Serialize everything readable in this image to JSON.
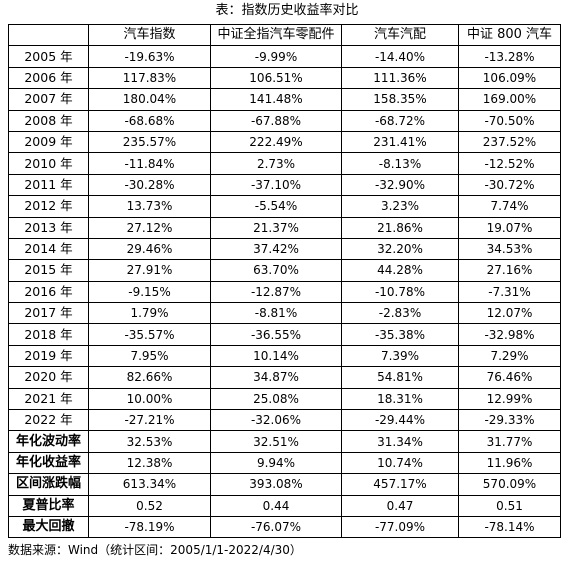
{
  "title": "表：指数历史收益率对比",
  "table": {
    "headers": [
      "",
      "汽车指数",
      "中证全指汽车零配件",
      "汽车汽配",
      "中证 800 汽车"
    ],
    "rows": [
      {
        "label": "2005 年",
        "values": [
          "-19.63%",
          "-9.99%",
          "-14.40%",
          "-13.28%"
        ]
      },
      {
        "label": "2006 年",
        "values": [
          "117.83%",
          "106.51%",
          "111.36%",
          "106.09%"
        ]
      },
      {
        "label": "2007 年",
        "values": [
          "180.04%",
          "141.48%",
          "158.35%",
          "169.00%"
        ]
      },
      {
        "label": "2008 年",
        "values": [
          "-68.68%",
          "-67.88%",
          "-68.72%",
          "-70.50%"
        ]
      },
      {
        "label": "2009 年",
        "values": [
          "235.57%",
          "222.49%",
          "231.41%",
          "237.52%"
        ]
      },
      {
        "label": "2010 年",
        "values": [
          "-11.84%",
          "2.73%",
          "-8.13%",
          "-12.52%"
        ]
      },
      {
        "label": "2011 年",
        "values": [
          "-30.28%",
          "-37.10%",
          "-32.90%",
          "-30.72%"
        ]
      },
      {
        "label": "2012 年",
        "values": [
          "13.73%",
          "-5.54%",
          "3.23%",
          "7.74%"
        ]
      },
      {
        "label": "2013 年",
        "values": [
          "27.12%",
          "21.37%",
          "21.86%",
          "19.07%"
        ]
      },
      {
        "label": "2014 年",
        "values": [
          "29.46%",
          "37.42%",
          "32.20%",
          "34.53%"
        ]
      },
      {
        "label": "2015 年",
        "values": [
          "27.91%",
          "63.70%",
          "44.28%",
          "27.16%"
        ]
      },
      {
        "label": "2016 年",
        "values": [
          "-9.15%",
          "-12.87%",
          "-10.78%",
          "-7.31%"
        ]
      },
      {
        "label": "2017 年",
        "values": [
          "1.79%",
          "-8.81%",
          "-2.83%",
          "12.07%"
        ]
      },
      {
        "label": "2018 年",
        "values": [
          "-35.57%",
          "-36.55%",
          "-35.38%",
          "-32.98%"
        ]
      },
      {
        "label": "2019 年",
        "values": [
          "7.95%",
          "10.14%",
          "7.39%",
          "7.29%"
        ]
      },
      {
        "label": "2020 年",
        "values": [
          "82.66%",
          "34.87%",
          "54.81%",
          "76.46%"
        ]
      },
      {
        "label": "2021 年",
        "values": [
          "10.00%",
          "25.08%",
          "18.31%",
          "12.99%"
        ]
      },
      {
        "label": "2022 年",
        "values": [
          "-27.21%",
          "-32.06%",
          "-29.44%",
          "-29.33%"
        ]
      },
      {
        "label": "年化波动率",
        "values": [
          "32.53%",
          "32.51%",
          "31.34%",
          "31.77%"
        ],
        "summary": true
      },
      {
        "label": "年化收益率",
        "values": [
          "12.38%",
          "9.94%",
          "10.74%",
          "11.96%"
        ],
        "summary": true
      },
      {
        "label": "区间涨跌幅",
        "values": [
          "613.34%",
          "393.08%",
          "457.17%",
          "570.09%"
        ],
        "summary": true
      },
      {
        "label": "夏普比率",
        "values": [
          "0.52",
          "0.44",
          "0.47",
          "0.51"
        ],
        "summary": true
      },
      {
        "label": "最大回撤",
        "values": [
          "-78.19%",
          "-76.07%",
          "-77.09%",
          "-78.14%"
        ],
        "summary": true
      }
    ]
  },
  "source": "数据来源：Wind（统计区间：2005/1/1-2022/4/30）"
}
